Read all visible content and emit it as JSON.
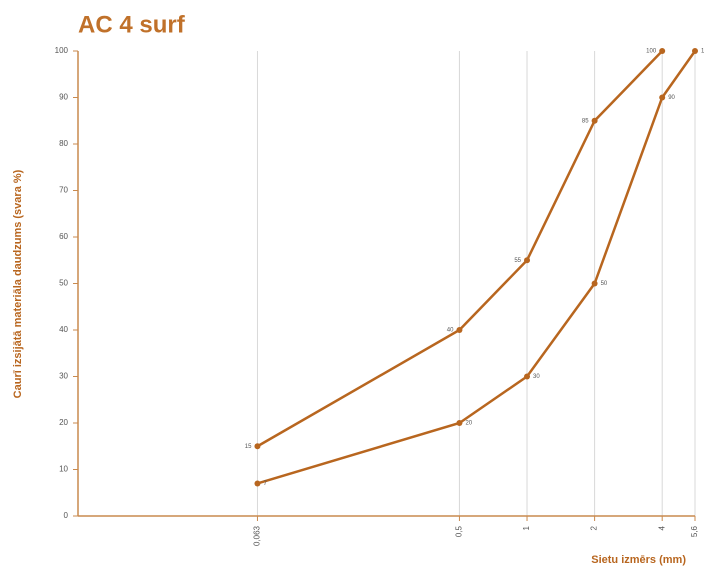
{
  "chart_data": {
    "type": "line",
    "title": "AC 4 surf",
    "xlabel": "Sietu izmērs (mm)",
    "ylabel": "Caurī izsijātā materiāla daudzums (svara %)",
    "xscale": "log",
    "xlim": [
      0.01,
      5.6
    ],
    "ylim": [
      0,
      100
    ],
    "xticks": [
      {
        "value": 0.063,
        "label": "0,063"
      },
      {
        "value": 0.5,
        "label": "0,5"
      },
      1,
      2,
      4,
      {
        "value": 5.6,
        "label": "5,6"
      }
    ],
    "yticks": [
      0,
      10,
      20,
      30,
      40,
      50,
      60,
      70,
      80,
      90,
      100
    ],
    "grid": "x",
    "series": [
      {
        "color": "#b8661f",
        "x": [
          0.063,
          0.5,
          1,
          2,
          4
        ],
        "values": [
          15,
          40,
          55,
          85,
          100
        ]
      },
      {
        "color": "#b8661f",
        "x": [
          0.063,
          0.5,
          1,
          2,
          4,
          5.6
        ],
        "values": [
          7,
          20,
          30,
          50,
          90,
          100
        ]
      }
    ]
  }
}
